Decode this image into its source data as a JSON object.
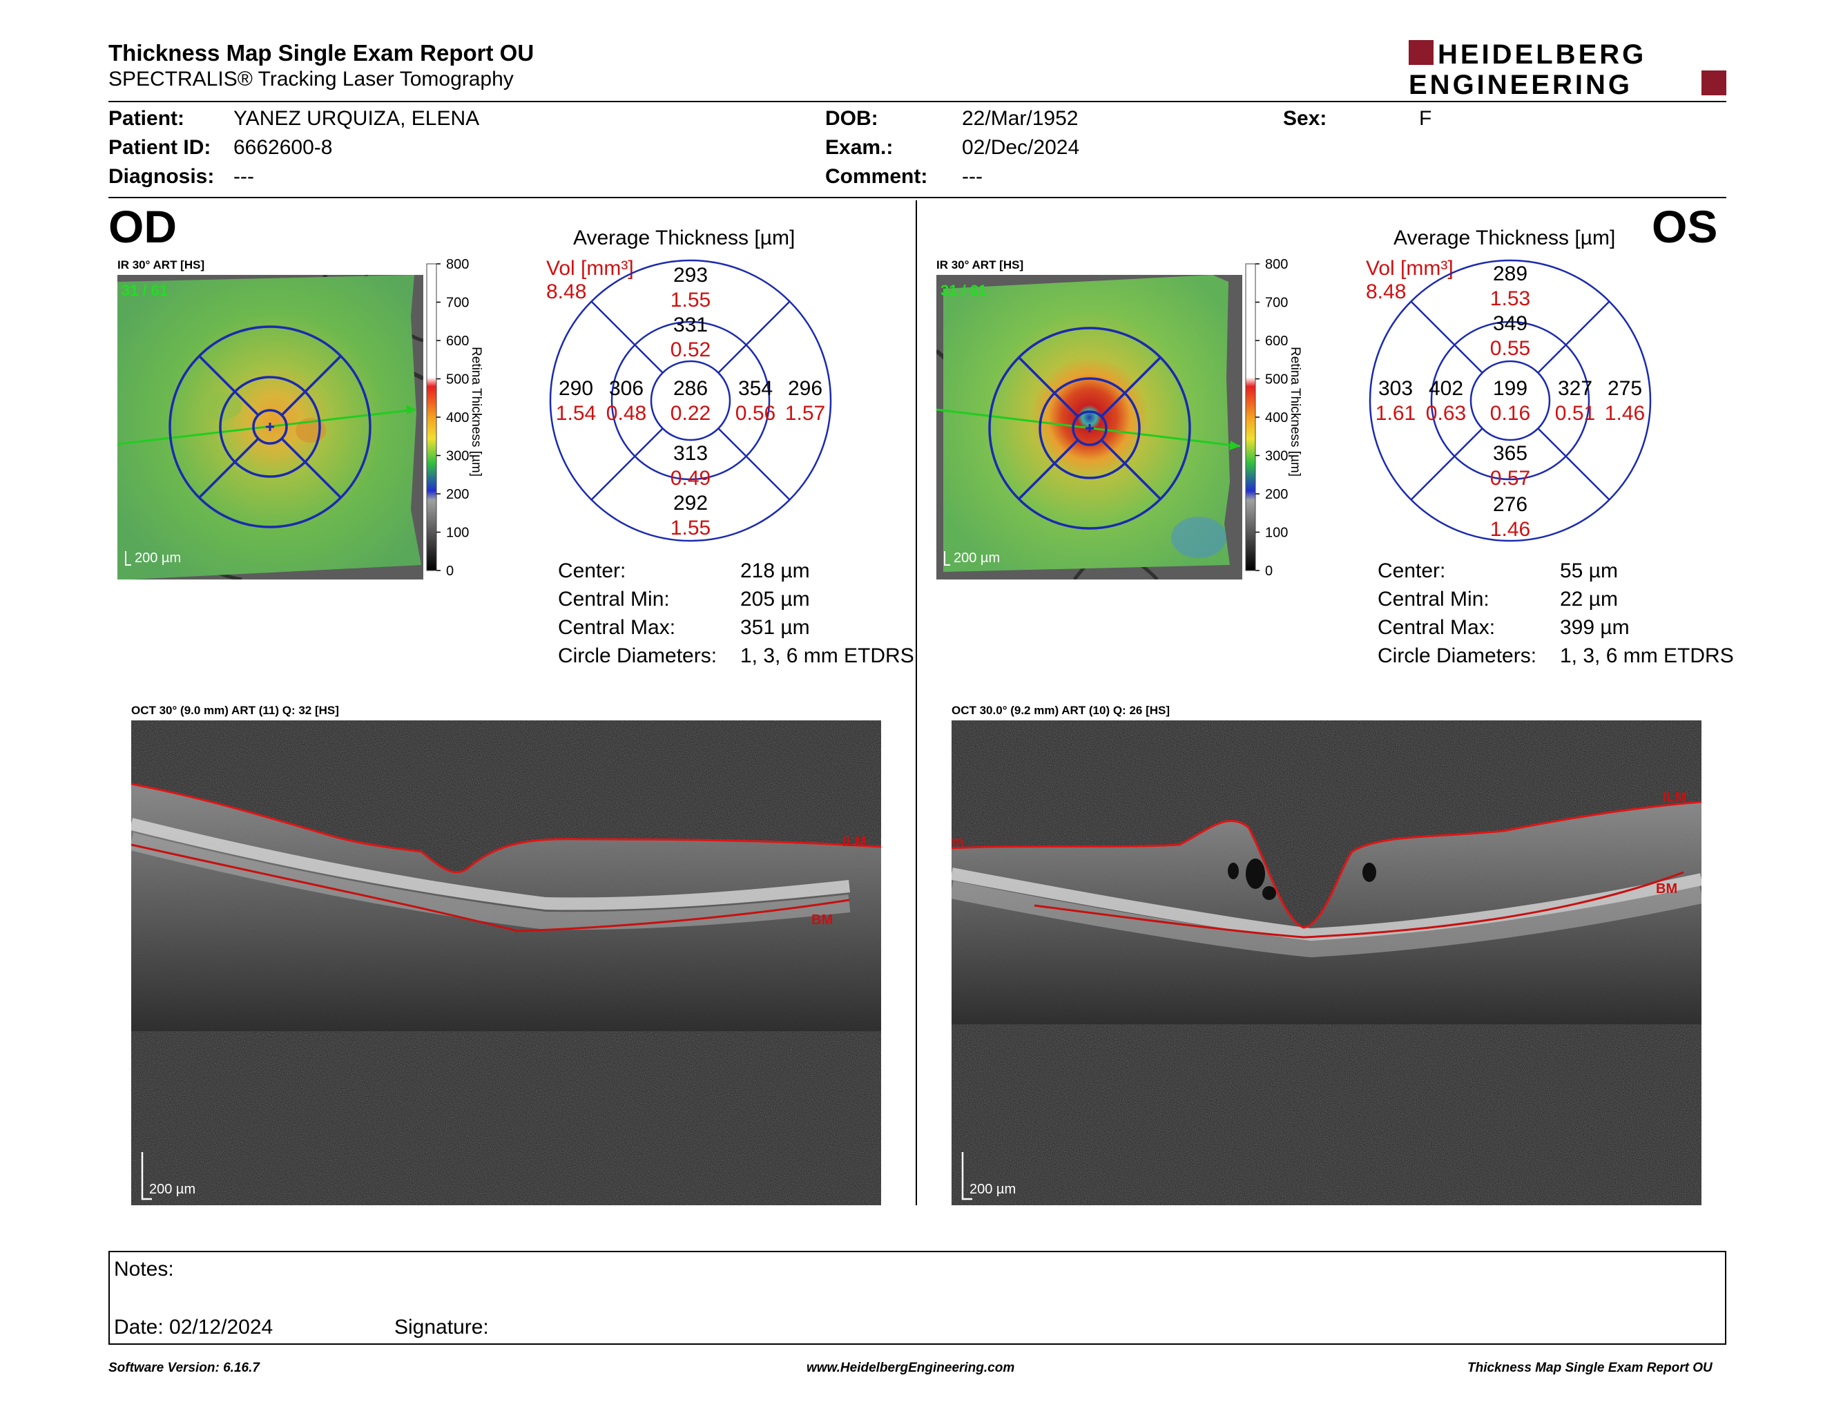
{
  "header": {
    "title": "Thickness Map Single Exam Report OU",
    "subtitle": "SPECTRALIS® Tracking Laser Tomography",
    "brand_line1": "HEIDELBERG",
    "brand_line2": "ENGINEERING",
    "brand_color": "#8b1a2b"
  },
  "patient": {
    "patient_label": "Patient:",
    "patient_value": "YANEZ URQUIZA, ELENA",
    "id_label": "Patient ID:",
    "id_value": "6662600-8",
    "diagnosis_label": "Diagnosis:",
    "diagnosis_value": "---",
    "dob_label": "DOB:",
    "dob_value": "22/Mar/1952",
    "exam_label": "Exam.:",
    "exam_value": "02/Dec/2024",
    "comment_label": "Comment:",
    "comment_value": "---",
    "sex_label": "Sex:",
    "sex_value": "F"
  },
  "colorbar": {
    "ticks": [
      "800",
      "700",
      "600",
      "500",
      "400",
      "300",
      "200",
      "100",
      "0"
    ],
    "label": "Retina  Thickness [µm]"
  },
  "od": {
    "eye": "OD",
    "ir_label": "IR 30° ART [HS]",
    "frames": "31 / 61",
    "scale": "200 µm",
    "avg_title": "Average Thickness [µm]",
    "vol_label": "Vol [mm³]",
    "vol_value": "8.48",
    "grid": {
      "outer_top": "293",
      "outer_top_vol": "1.55",
      "inner_top": "331",
      "inner_top_vol": "0.52",
      "outer_left": "290",
      "outer_left_vol": "1.54",
      "inner_left": "306",
      "inner_left_vol": "0.48",
      "center": "286",
      "center_vol": "0.22",
      "inner_right": "354",
      "inner_right_vol": "0.56",
      "outer_right": "296",
      "outer_right_vol": "1.57",
      "inner_bottom": "313",
      "inner_bottom_vol": "0.49",
      "outer_bottom": "292",
      "outer_bottom_vol": "1.55"
    },
    "stats": {
      "center_label": "Center:",
      "center_value": "218 µm",
      "cmin_label": "Central Min:",
      "cmin_value": "205 µm",
      "cmax_label": "Central Max:",
      "cmax_value": "351 µm",
      "circ_label": "Circle Diameters:",
      "circ_value": "1, 3, 6 mm ETDRS"
    },
    "oct_label": "OCT 30° (9.0 mm) ART (11) Q: 32 [HS]",
    "oct_scale": "200 µm",
    "ilm": "ILM",
    "bm": "BM"
  },
  "os": {
    "eye": "OS",
    "ir_label": "IR 30° ART [HS]",
    "frames": "31 / 61",
    "scale": "200 µm",
    "avg_title": "Average Thickness [µm]",
    "vol_label": "Vol [mm³]",
    "vol_value": "8.48",
    "grid": {
      "outer_top": "289",
      "outer_top_vol": "1.53",
      "inner_top": "349",
      "inner_top_vol": "0.55",
      "outer_left": "303",
      "outer_left_vol": "1.61",
      "inner_left": "402",
      "inner_left_vol": "0.63",
      "center": "199",
      "center_vol": "0.16",
      "inner_right": "327",
      "inner_right_vol": "0.51",
      "outer_right": "275",
      "outer_right_vol": "1.46",
      "inner_bottom": "365",
      "inner_bottom_vol": "0.57",
      "outer_bottom": "276",
      "outer_bottom_vol": "1.46"
    },
    "stats": {
      "center_label": "Center:",
      "center_value": "55 µm",
      "cmin_label": "Central Min:",
      "cmin_value": "22 µm",
      "cmax_label": "Central Max:",
      "cmax_value": "399 µm",
      "circ_label": "Circle Diameters:",
      "circ_value": "1, 3, 6 mm ETDRS"
    },
    "oct_label": "OCT 30.0° (9.2 mm) ART (10) Q: 26 [HS]",
    "oct_scale": "200 µm",
    "ilm": "ILM",
    "ilm_left": "m",
    "bm": "BM"
  },
  "notes": {
    "notes_label": "Notes:",
    "date_label": "Date: 02/12/2024",
    "signature_label": "Signature:"
  },
  "footer": {
    "version": "Software Version: 6.16.7",
    "website": "www.HeidelbergEngineering.com",
    "report": "Thickness Map Single Exam Report OU"
  }
}
